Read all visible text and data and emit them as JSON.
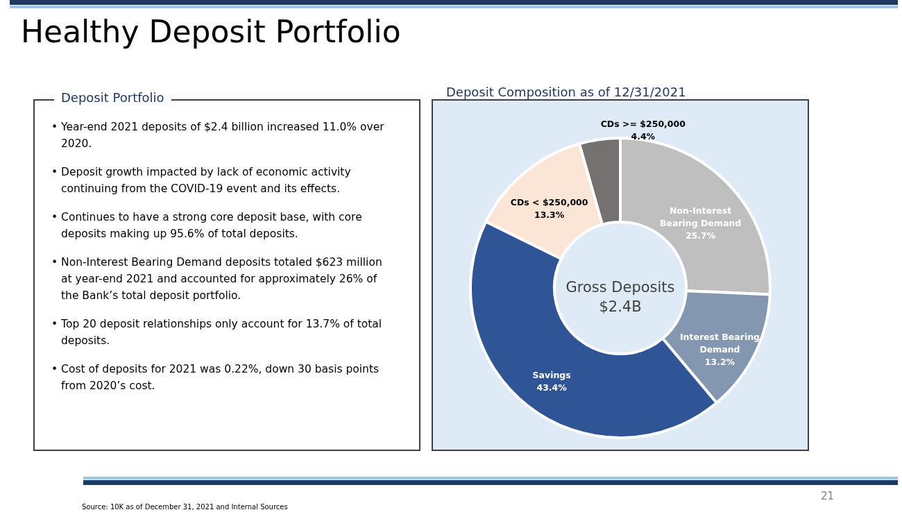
{
  "chart_data": [
    {
      "type": "other",
      "title": "Healthy Deposit Portfolio",
      "subtitle": "Deposit Portfolio",
      "annotations": [
        "• Year-end 2021 deposits of $2.4 billion increased 11.0% over 2020.",
        "• Deposit growth impacted by lack of economic activity continuing from the COVID-19 event and its effects.",
        "• Continues to have a strong core deposit base, with core deposits making up 95.6% of total deposits.",
        "• Non-Interest Bearing Demand deposits totaled $623 million at year-end 2021 and accounted for approximately 26% of the Bank’s total deposit portfolio.",
        "• Top 20 deposit relationships only account for 13.7% of total deposits.",
        "• Cost of deposits for 2021 was 0.22%, down 30 basis points from 2020’s cost."
      ]
    },
    {
      "type": "donut",
      "title": "Deposit Composition as of 12/31/2021",
      "categories": [
        "Non-Interest Bearing Demand",
        "Interest Bearing Demand",
        "Savings",
        "CDs < $250,000",
        "CDs >= $250,000"
      ],
      "values": [
        25.7,
        13.2,
        43.4,
        13.3,
        4.4
      ],
      "value_labels": [
        "25.7%",
        "13.2%",
        "43.4%",
        "13.3%",
        "4.4%"
      ],
      "colors": [
        "#bfbfbf",
        "#8497b0",
        "#2f5597",
        "#fbe5d6",
        "#767171"
      ],
      "annotations": [
        "Gross Deposits $2.4B",
        "Source:  10K as of December 31, 2021 and Internal Sources",
        "21"
      ]
    }
  ]
}
